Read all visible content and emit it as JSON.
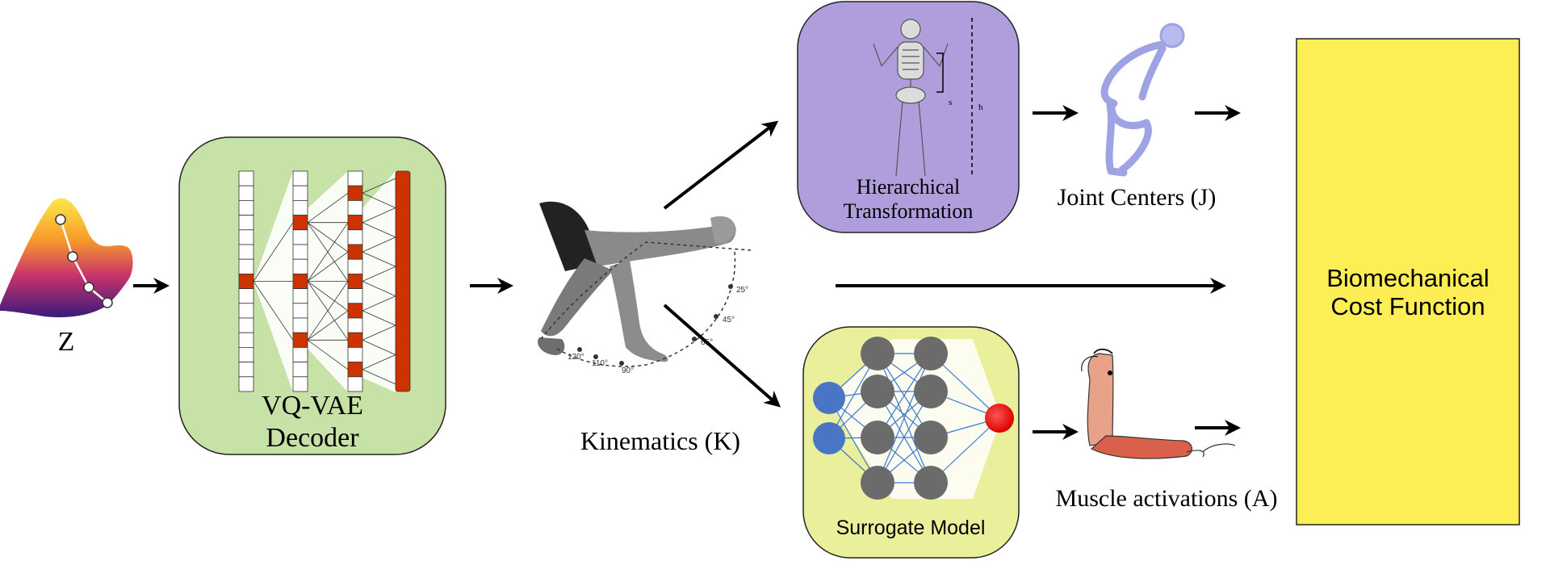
{
  "labels": {
    "z": "Z",
    "vqvae_line1": "VQ-VAE",
    "vqvae_line2": "Decoder",
    "kinematics": "Kinematics (K)",
    "hier_line1": "Hierarchical",
    "hier_line2": "Transformation",
    "joint_centers": "Joint Centers (J)",
    "surrogate": "Surrogate Model",
    "muscle": "Muscle activations (A)",
    "cost_line1": "Biomechanical",
    "cost_line2": "Cost Function",
    "skeleton_s": "s",
    "skeleton_h": "h"
  },
  "angle_labels": [
    "25°",
    "45°",
    "65°",
    "90°",
    "110°",
    "120°"
  ],
  "colors": {
    "decoder_box": "#c6e2a6",
    "hier_box": "#b09ddc",
    "surrogate_box": "#e9ef9a",
    "cost_box": "#fdee55",
    "latent_red": "#cc3300",
    "input_node": "#4a74c4",
    "hidden_node": "#6b6b6b",
    "output_node": "#ee1111"
  }
}
